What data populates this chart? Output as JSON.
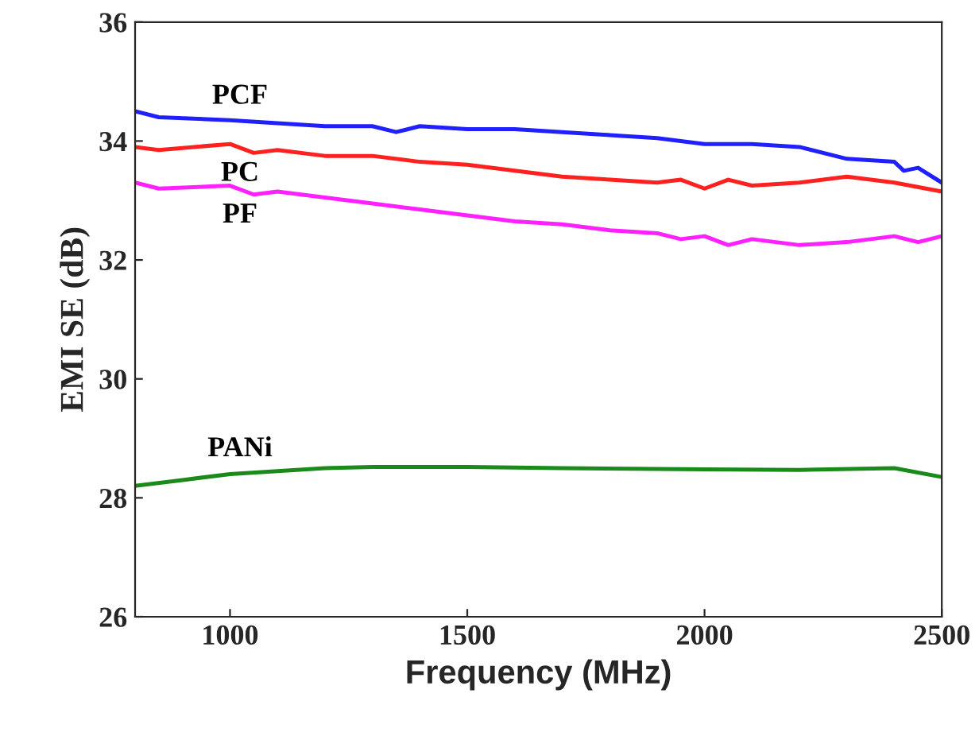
{
  "chart_data": {
    "type": "line",
    "xlabel": "Frequency (MHz)",
    "ylabel": "EMI SE (dB)",
    "xlim": [
      800,
      2500
    ],
    "xticks": [
      1000,
      1500,
      2000,
      2500
    ],
    "ylim": [
      26,
      36
    ],
    "yticks": [
      26,
      28,
      30,
      32,
      34,
      36
    ],
    "grid": false,
    "legend": false,
    "series": [
      {
        "name": "PCF",
        "color": "#1f1fff",
        "x": [
          800,
          850,
          1000,
          1100,
          1200,
          1300,
          1350,
          1400,
          1500,
          1600,
          1700,
          1800,
          1900,
          2000,
          2100,
          2200,
          2300,
          2400,
          2420,
          2450,
          2500
        ],
        "values": [
          34.5,
          34.4,
          34.35,
          34.3,
          34.25,
          34.25,
          34.15,
          34.25,
          34.2,
          34.2,
          34.15,
          34.1,
          34.05,
          33.95,
          33.95,
          33.9,
          33.7,
          33.65,
          33.5,
          33.55,
          33.3
        ]
      },
      {
        "name": "PC",
        "color": "#ff2020",
        "x": [
          800,
          850,
          1000,
          1050,
          1100,
          1200,
          1300,
          1400,
          1500,
          1600,
          1700,
          1800,
          1900,
          1950,
          2000,
          2050,
          2100,
          2200,
          2300,
          2400,
          2500
        ],
        "values": [
          33.9,
          33.85,
          33.95,
          33.8,
          33.85,
          33.75,
          33.75,
          33.65,
          33.6,
          33.5,
          33.4,
          33.35,
          33.3,
          33.35,
          33.2,
          33.35,
          33.25,
          33.3,
          33.4,
          33.3,
          33.15
        ]
      },
      {
        "name": "PF",
        "color": "#ff20ff",
        "x": [
          800,
          850,
          1000,
          1050,
          1100,
          1200,
          1300,
          1400,
          1500,
          1600,
          1700,
          1800,
          1900,
          1950,
          2000,
          2050,
          2100,
          2200,
          2300,
          2400,
          2450,
          2500
        ],
        "values": [
          33.3,
          33.2,
          33.25,
          33.1,
          33.15,
          33.05,
          32.95,
          32.85,
          32.75,
          32.65,
          32.6,
          32.5,
          32.45,
          32.35,
          32.4,
          32.25,
          32.35,
          32.25,
          32.3,
          32.4,
          32.3,
          32.4
        ]
      },
      {
        "name": "PANi",
        "color": "#1a8a1a",
        "x": [
          800,
          900,
          1000,
          1100,
          1200,
          1300,
          1500,
          1700,
          2000,
          2200,
          2400,
          2500
        ],
        "values": [
          28.2,
          28.3,
          28.4,
          28.45,
          28.5,
          28.52,
          28.52,
          28.5,
          28.48,
          28.47,
          28.5,
          28.35
        ]
      }
    ]
  }
}
